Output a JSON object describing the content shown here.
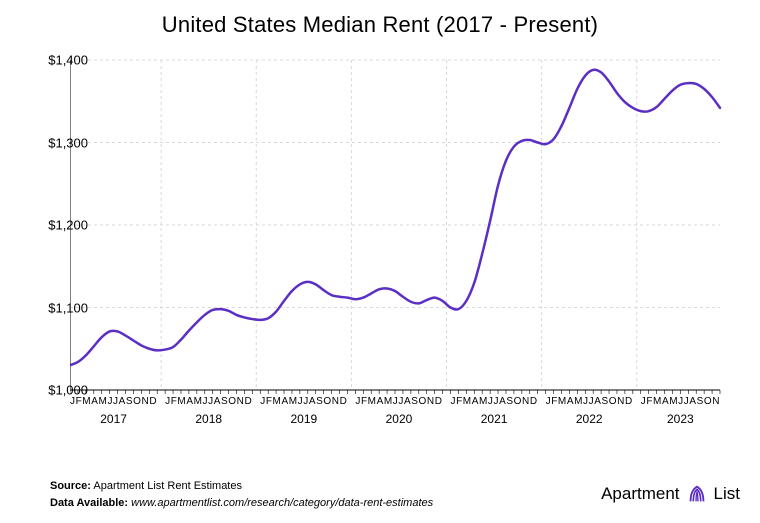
{
  "chart": {
    "type": "line",
    "title": "United States Median Rent (2017 - Present)",
    "title_fontsize": 22,
    "background_color": "#ffffff",
    "grid_color": "#d9d9d9",
    "axis_color": "#000000",
    "line_color": "#5b2ec4",
    "line_width": 2.5,
    "ylim": [
      1000,
      1400
    ],
    "ytick_step": 100,
    "ytick_labels": [
      "$1,000",
      "$1,100",
      "$1,200",
      "$1,300",
      "$1,400"
    ],
    "ytick_fontsize": 13,
    "x_years": [
      "2017",
      "2018",
      "2019",
      "2020",
      "2021",
      "2022",
      "2023"
    ],
    "x_month_letters": [
      "J",
      "F",
      "M",
      "A",
      "M",
      "J",
      "J",
      "A",
      "S",
      "O",
      "N",
      "D"
    ],
    "x_month_fontsize": 10,
    "x_year_fontsize": 12,
    "series_months_count": 83,
    "values": [
      1030,
      1034,
      1042,
      1053,
      1064,
      1071,
      1071,
      1066,
      1060,
      1054,
      1050,
      1048,
      1049,
      1052,
      1061,
      1072,
      1082,
      1091,
      1097,
      1098,
      1096,
      1091,
      1088,
      1086,
      1085,
      1087,
      1095,
      1108,
      1120,
      1128,
      1131,
      1128,
      1121,
      1115,
      1113,
      1112,
      1110,
      1112,
      1117,
      1122,
      1123,
      1120,
      1113,
      1107,
      1105,
      1109,
      1112,
      1108,
      1100,
      1098,
      1108,
      1130,
      1165,
      1205,
      1248,
      1278,
      1295,
      1302,
      1303,
      1300,
      1298,
      1304,
      1320,
      1342,
      1365,
      1381,
      1388,
      1385,
      1374,
      1360,
      1349,
      1342,
      1338,
      1338,
      1343,
      1353,
      1363,
      1370,
      1372,
      1371,
      1365,
      1355,
      1342
    ]
  },
  "footer": {
    "source_label": "Source:",
    "source_value": "Apartment List Rent Estimates",
    "data_label": "Data Available:",
    "data_value": "www.apartmentlist.com/research/category/data-rent-estimates"
  },
  "brand": {
    "name": "Apartment",
    "logo_word": "List",
    "logo_color": "#5b2ec4"
  }
}
